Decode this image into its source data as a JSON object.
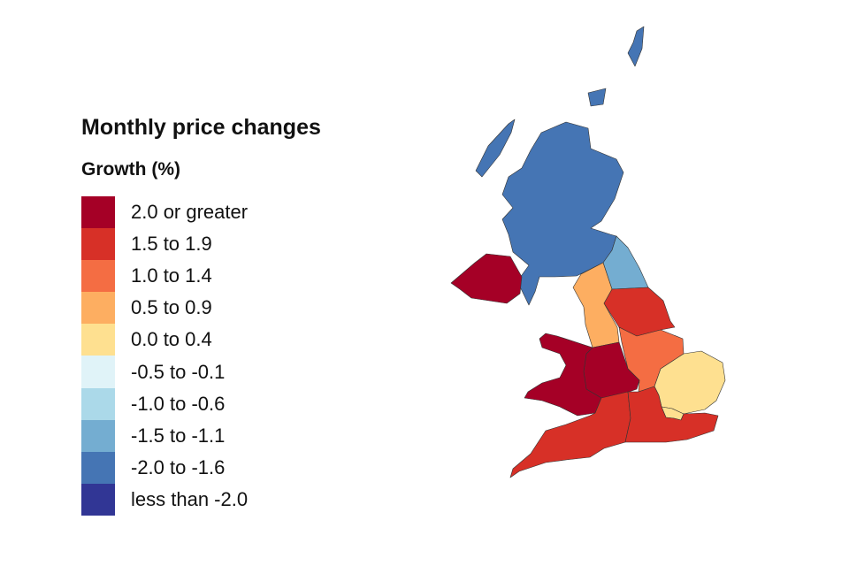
{
  "title": "Monthly price changes",
  "legend": {
    "title": "Growth (%)",
    "items": [
      {
        "label": "2.0 or greater",
        "color": "#a50026"
      },
      {
        "label": "1.5 to 1.9",
        "color": "#d73027"
      },
      {
        "label": "1.0 to 1.4",
        "color": "#f46d43"
      },
      {
        "label": "0.5 to 0.9",
        "color": "#fdae61"
      },
      {
        "label": "0.0 to 0.4",
        "color": "#fee090"
      },
      {
        "label": "-0.5 to -0.1",
        "color": "#e0f3f8"
      },
      {
        "label": "-1.0 to -0.6",
        "color": "#abd9e9"
      },
      {
        "label": "-1.5 to -1.1",
        "color": "#74add1"
      },
      {
        "label": "-2.0 to -1.6",
        "color": "#4575b4"
      },
      {
        "label": "less than -2.0",
        "color": "#313695"
      }
    ]
  },
  "map": {
    "regions": {
      "scotland": 8,
      "northern_ireland": 0,
      "north_east": 7,
      "north_west": 3,
      "yorkshire_and_the_humber": 1,
      "east_midlands": 2,
      "west_midlands": 0,
      "wales": 0,
      "east": 4,
      "london": 4,
      "south_east": 1,
      "south_west": 1
    }
  }
}
